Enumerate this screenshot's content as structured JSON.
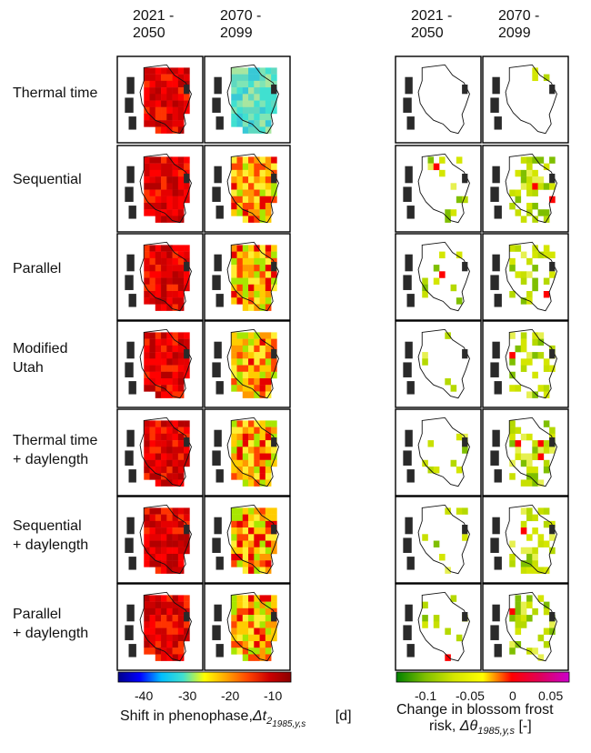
{
  "column_headers": {
    "left": [
      "2021 -\n2050",
      "2070 -\n2099"
    ],
    "right": [
      "2021 -\n2050",
      "2070 -\n2099"
    ]
  },
  "rows": [
    "Thermal time",
    "Sequential",
    "Parallel",
    "Modified\nUtah",
    "Thermal time\n+ daylength",
    "Sequential\n+ daylength",
    "Parallel\n+ daylength"
  ],
  "colorbars": {
    "phenophase": {
      "ticks": [
        "-40",
        "-30",
        "-20",
        "-10"
      ],
      "range": [
        -40,
        0
      ],
      "colors": [
        "#00008b",
        "#0000ff",
        "#00bfff",
        "#40e0d0",
        "#ffff00",
        "#ffa500",
        "#ff4500",
        "#cc0000",
        "#8b0000"
      ],
      "title": "Shift in phenophase,",
      "title_symbol": "Δt",
      "title_sub1": "2",
      "title_sub2": "1985,y,s",
      "title_unit": "[d]"
    },
    "frost": {
      "ticks": [
        "-0.1",
        "-0.05",
        "0",
        "0.05"
      ],
      "range": [
        -0.13,
        0.08
      ],
      "colors": [
        "#008000",
        "#7fbf00",
        "#d4e600",
        "#ffff00",
        "#ff0000",
        "#e0005a",
        "#cc00cc"
      ],
      "title_line1": "Change in blossom frost",
      "title_line2": "risk,",
      "title_symbol": "Δθ",
      "title_sub": "1985,y,s",
      "title_unit": "[-]"
    }
  }
}
